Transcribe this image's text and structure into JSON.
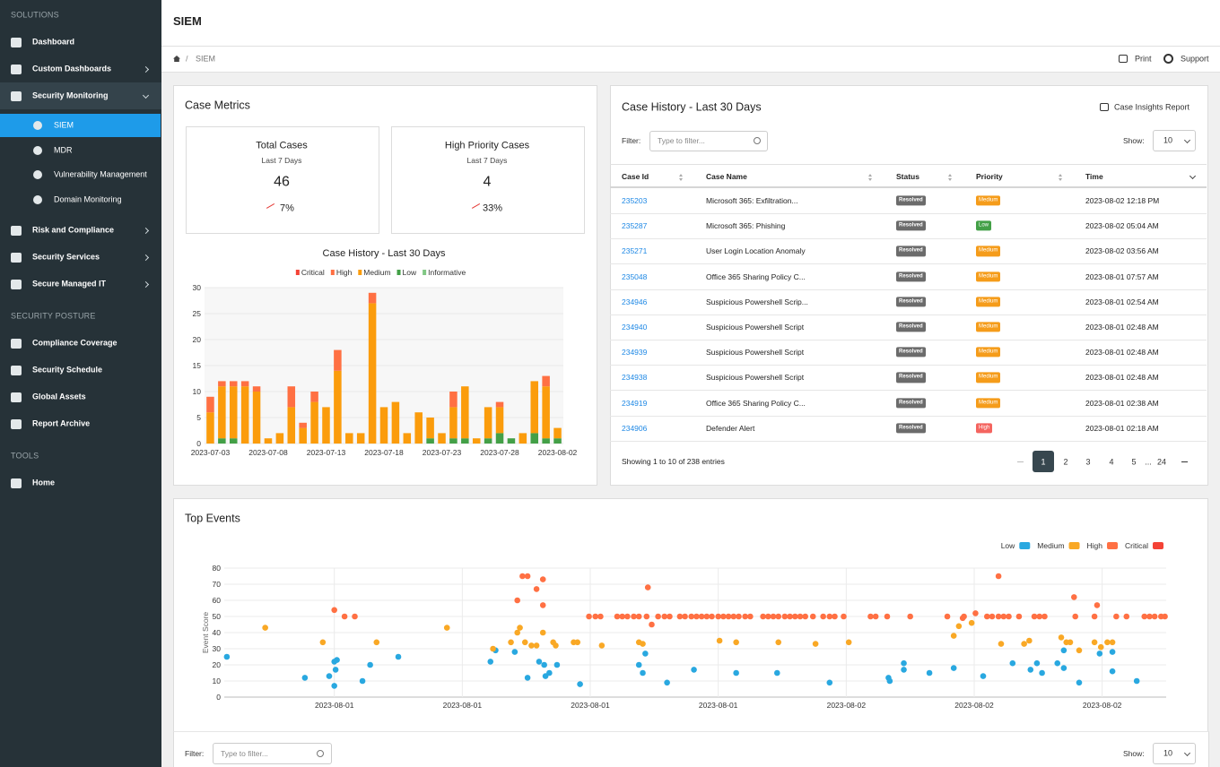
{
  "sidebar": {
    "sections": [
      {
        "heading": "SOLUTIONS",
        "items": [
          {
            "label": "Dashboard"
          },
          {
            "label": "Custom Dashboards",
            "submenu": true
          },
          {
            "label": "Security Monitoring",
            "children": [
              {
                "label": "SIEM",
                "active": true
              },
              {
                "label": "MDR"
              },
              {
                "label": "Vulnerability Management"
              },
              {
                "label": "Domain Monitoring"
              }
            ]
          },
          {
            "label": "Risk and Compliance",
            "submenu": true
          },
          {
            "label": "Security Services",
            "submenu": true
          },
          {
            "label": "Secure Managed IT",
            "submenu": true
          }
        ]
      },
      {
        "heading": "SECURITY POSTURE",
        "items": [
          {
            "label": "Compliance Coverage"
          },
          {
            "label": "Security Schedule"
          },
          {
            "label": "Global Assets"
          },
          {
            "label": "Report Archive"
          }
        ]
      },
      {
        "heading": "TOOLS",
        "items": [
          {
            "label": "Home"
          }
        ]
      }
    ]
  },
  "header": {
    "title": "SIEM"
  },
  "breadcrumb": {
    "separator": "/",
    "current": "SIEM",
    "actions": [
      "Print",
      "Support"
    ]
  },
  "metrics": {
    "title": "Case Metrics",
    "cards": [
      {
        "title": "Total Cases",
        "period": "Last 7 Days",
        "value": "46",
        "trend": "7%"
      },
      {
        "title": "High Priority Cases",
        "period": "Last 7 Days",
        "value": "4",
        "trend": "33%"
      }
    ]
  },
  "case_table": {
    "title": "Case History - Last 30 Days",
    "report_button": "Case Insights Report",
    "filter_label": "Filter:",
    "filter_placeholder": "Type to filter...",
    "show_label": "Show:",
    "show_value": "10",
    "columns": [
      "Case Id",
      "Case Name",
      "Status",
      "Priority",
      "Time"
    ],
    "status_color": "#6b6b6b",
    "priority_colors": {
      "Medium": "#f59c1a",
      "Low": "#43a047",
      "High": "#f4645f"
    },
    "rows": [
      [
        "235203",
        "Microsoft 365: Exfiltration...",
        "Resolved",
        "Medium",
        "2023-08-02 12:18 PM"
      ],
      [
        "235287",
        "Microsoft 365: Phishing",
        "Resolved",
        "Low",
        "2023-08-02 05:04 AM"
      ],
      [
        "235271",
        "User Login Location Anomaly",
        "Resolved",
        "Medium",
        "2023-08-02 03:56 AM"
      ],
      [
        "235048",
        "Office 365 Sharing Policy C...",
        "Resolved",
        "Medium",
        "2023-08-01 07:57 AM"
      ],
      [
        "234946",
        "Suspicious Powershell Scrip...",
        "Resolved",
        "Medium",
        "2023-08-01 02:54 AM"
      ],
      [
        "234940",
        "Suspicious Powershell Script",
        "Resolved",
        "Medium",
        "2023-08-01 02:48 AM"
      ],
      [
        "234939",
        "Suspicious Powershell Script",
        "Resolved",
        "Medium",
        "2023-08-01 02:48 AM"
      ],
      [
        "234938",
        "Suspicious Powershell Script",
        "Resolved",
        "Medium",
        "2023-08-01 02:48 AM"
      ],
      [
        "234919",
        "Office 365 Sharing Policy C...",
        "Resolved",
        "Medium",
        "2023-08-01 02:38 AM"
      ],
      [
        "234906",
        "Defender Alert",
        "Resolved",
        "High",
        "2023-08-01 02:18 AM"
      ]
    ],
    "info": "Showing 1 to 10 of 238 entries",
    "pages": [
      "1",
      "2",
      "3",
      "4",
      "5",
      "...",
      "24"
    ],
    "active_page": "1"
  },
  "events": {
    "title": "Top Events",
    "filter_label": "Filter:",
    "filter_placeholder": "Type to filter...",
    "show_label": "Show:",
    "show_value": "10"
  },
  "chart_data": [
    {
      "type": "bar",
      "stacked": true,
      "title": "Case History - Last 30 Days",
      "categories": [
        "2023-07-03",
        null,
        null,
        null,
        null,
        "2023-07-08",
        null,
        null,
        null,
        null,
        "2023-07-13",
        null,
        null,
        null,
        null,
        "2023-07-18",
        null,
        null,
        null,
        null,
        "2023-07-23",
        null,
        null,
        null,
        null,
        "2023-07-28",
        null,
        null,
        null,
        null,
        "2023-08-02"
      ],
      "series": [
        {
          "name": "Critical",
          "color": "#f44336",
          "values": [
            0,
            0,
            0,
            0,
            0,
            0,
            0,
            0,
            0,
            0,
            0,
            0,
            0,
            0,
            0,
            0,
            0,
            0,
            0,
            0,
            0,
            0,
            0,
            0,
            0,
            0,
            0,
            0,
            0,
            0,
            0
          ]
        },
        {
          "name": "High",
          "color": "#ff7043",
          "values": [
            3,
            1,
            1,
            1,
            1,
            0,
            0,
            4,
            1,
            2,
            0,
            4,
            0,
            0,
            2,
            0,
            0,
            0,
            0,
            0,
            0,
            3,
            0,
            0,
            0,
            1,
            0,
            0,
            0,
            2,
            0
          ]
        },
        {
          "name": "Medium",
          "color": "#fb9c0c",
          "values": [
            6,
            10,
            10,
            11,
            10,
            1,
            2,
            7,
            3,
            8,
            7,
            14,
            2,
            2,
            27,
            7,
            8,
            2,
            6,
            4,
            2,
            6,
            10,
            1,
            6,
            5,
            0,
            2,
            10,
            10,
            2
          ]
        },
        {
          "name": "Low",
          "color": "#43a047",
          "values": [
            0,
            1,
            1,
            0,
            0,
            0,
            0,
            0,
            0,
            0,
            0,
            0,
            0,
            0,
            0,
            0,
            0,
            0,
            0,
            1,
            0,
            1,
            1,
            0,
            1,
            2,
            1,
            0,
            2,
            1,
            1
          ]
        },
        {
          "name": "Informative",
          "color": "#81c784",
          "values": [
            0,
            0,
            0,
            0,
            0,
            0,
            0,
            0,
            0,
            0,
            0,
            0,
            0,
            0,
            0,
            0,
            0,
            0,
            0,
            0,
            0,
            0,
            0,
            0,
            0,
            0,
            0,
            0,
            0,
            0,
            0
          ]
        }
      ],
      "ylim": [
        0,
        30
      ],
      "yticks": [
        0,
        5,
        10,
        15,
        20,
        25,
        30
      ],
      "grid": true,
      "legend": "top"
    },
    {
      "type": "scatter",
      "ylabel": "Event Score",
      "xlim": [
        -8.6,
        65
      ],
      "xticks": [
        {
          "value": 0,
          "label": "2023-08-01"
        },
        {
          "value": 10,
          "label": "2023-08-01"
        },
        {
          "value": 20,
          "label": "2023-08-01"
        },
        {
          "value": 30,
          "label": "2023-08-01"
        },
        {
          "value": 40,
          "label": "2023-08-02"
        },
        {
          "value": 50,
          "label": "2023-08-02"
        },
        {
          "value": 60,
          "label": "2023-08-02"
        }
      ],
      "ylim": [
        0,
        80
      ],
      "yticks": [
        0,
        10,
        20,
        30,
        40,
        50,
        60,
        70,
        80
      ],
      "grid": true,
      "legend": "top-right",
      "series": [
        {
          "name": "Low",
          "color": "#29a8e0",
          "x": [
            -8.4,
            -2.3,
            -0.4,
            0,
            0.2,
            0.1,
            0,
            2.2,
            2.8,
            5,
            12.2,
            12.6,
            14.1,
            15.1,
            16,
            16.4,
            16.5,
            16.8,
            17.4,
            19.2,
            23.8,
            24.1,
            24.3,
            26,
            28.1,
            31.4,
            34.6,
            38.7,
            43.3,
            43.4,
            44.5,
            44.5,
            46.5,
            48.4,
            50.7,
            53,
            54.4,
            54.9,
            55.3,
            56.5,
            57,
            57,
            58.2,
            59.8,
            60.8,
            60.8,
            62.7
          ],
          "values": [
            25,
            12,
            13,
            22,
            23,
            17,
            7,
            10,
            20,
            25,
            22,
            29,
            28,
            12,
            22,
            20,
            13,
            15,
            20,
            8,
            20,
            15,
            27,
            9,
            17,
            15,
            15,
            9,
            12,
            10,
            21,
            17,
            15,
            18,
            13,
            21,
            17,
            21,
            15,
            21,
            29,
            18,
            9,
            27,
            28,
            16,
            10
          ]
        },
        {
          "name": "Medium",
          "color": "#f9a825",
          "x": [
            -5.4,
            -0.9,
            3.3,
            8.8,
            12.4,
            13.8,
            14.3,
            14.5,
            14.9,
            15.4,
            15.8,
            16.3,
            17.1,
            17.3,
            18.7,
            19,
            20.9,
            23.8,
            24.1,
            30.1,
            31.4,
            34.7,
            37.6,
            40.2,
            48.4,
            48.8,
            49.8,
            52.1,
            53.9,
            54.3,
            56.8,
            57.2,
            57.5,
            58.2,
            59.4,
            59.9,
            60.4,
            60.8
          ],
          "values": [
            43,
            34,
            34,
            43,
            30,
            34,
            40,
            43,
            34,
            32,
            32,
            40,
            34,
            32,
            34,
            34,
            32,
            34,
            33,
            35,
            34,
            34,
            33,
            34,
            38,
            44,
            46,
            33,
            33,
            35,
            37,
            34,
            34,
            29,
            34,
            31,
            34,
            34
          ]
        },
        {
          "name": "High",
          "color": "#ff7043",
          "x": [
            0,
            0.8,
            1.6,
            14.3,
            14.7,
            15.1,
            15.8,
            16.3,
            16.3,
            24.5,
            24.8,
            51.9,
            57.8,
            59.6,
            49.1,
            50.1,
            19.9,
            20.4,
            20.8,
            22.1,
            22.5,
            22.9,
            23.4,
            23.8,
            24.4,
            25.3,
            25.8,
            26.2,
            27,
            27.4,
            27.9,
            28.3,
            28.7,
            29.1,
            29.5,
            30,
            30.4,
            30.8,
            31.2,
            31.6,
            32.1,
            32.5,
            33.5,
            33.9,
            34.3,
            34.7,
            35.2,
            35.6,
            36,
            36.4,
            36.8,
            37.4,
            38.2,
            38.7,
            39.1,
            39.8,
            41.9,
            42.3,
            43.2,
            45,
            47.9,
            49.2,
            51,
            51.4,
            51.9,
            52.3,
            52.7,
            53.5,
            54.7,
            55.1,
            55.5,
            57.9,
            59.4,
            61.1,
            61.9,
            63.3,
            63.7,
            64.1,
            64.6,
            64.9
          ],
          "values": [
            54,
            50,
            50,
            60,
            75,
            75,
            67,
            73,
            57,
            68,
            45,
            75,
            62,
            57,
            49,
            52,
            50,
            50,
            50,
            50,
            50,
            50,
            50,
            50,
            50,
            50,
            50,
            50,
            50,
            50,
            50,
            50,
            50,
            50,
            50,
            50,
            50,
            50,
            50,
            50,
            50,
            50,
            50,
            50,
            50,
            50,
            50,
            50,
            50,
            50,
            50,
            50,
            50,
            50,
            50,
            50,
            50,
            50,
            50,
            50,
            50,
            50,
            50,
            50,
            50,
            50,
            50,
            50,
            50,
            50,
            50,
            50,
            50,
            50,
            50,
            50,
            50,
            50,
            50,
            50
          ]
        },
        {
          "name": "Critical",
          "color": "#f44336",
          "x": [],
          "values": []
        }
      ]
    }
  ]
}
